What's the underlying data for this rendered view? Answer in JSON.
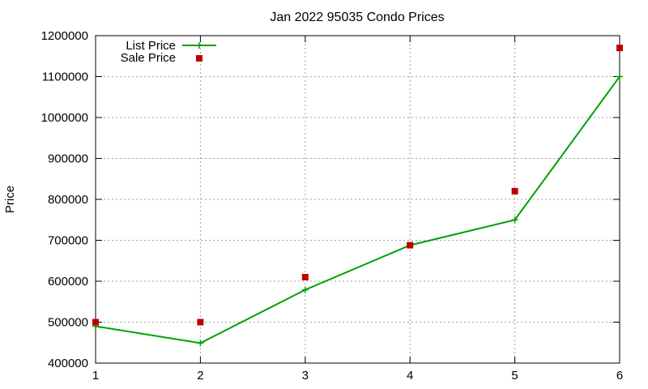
{
  "chart_data": {
    "type": "line",
    "title": "Jan 2022 95035 Condo Prices",
    "xlabel": "",
    "ylabel": "Price",
    "xlim": [
      1,
      6
    ],
    "ylim": [
      400000,
      1200000
    ],
    "x_ticks": [
      "1",
      "2",
      "3",
      "4",
      "5",
      "6"
    ],
    "y_ticks": [
      "400000",
      "500000",
      "600000",
      "700000",
      "800000",
      "900000",
      "1000000",
      "1100000",
      "1200000"
    ],
    "grid": true,
    "legend_position": "top-left",
    "series": [
      {
        "name": "List Price",
        "style": "line-with-plus-markers",
        "color": "#00a000",
        "x": [
          1,
          2,
          3,
          4,
          5,
          6
        ],
        "y": [
          490000,
          449000,
          579000,
          688000,
          750000,
          1100000
        ]
      },
      {
        "name": "Sale Price",
        "style": "square-markers",
        "color": "#c00000",
        "x": [
          1,
          2,
          3,
          4,
          5,
          6
        ],
        "y": [
          500000,
          500000,
          610000,
          688000,
          820000,
          1170000
        ]
      }
    ]
  }
}
